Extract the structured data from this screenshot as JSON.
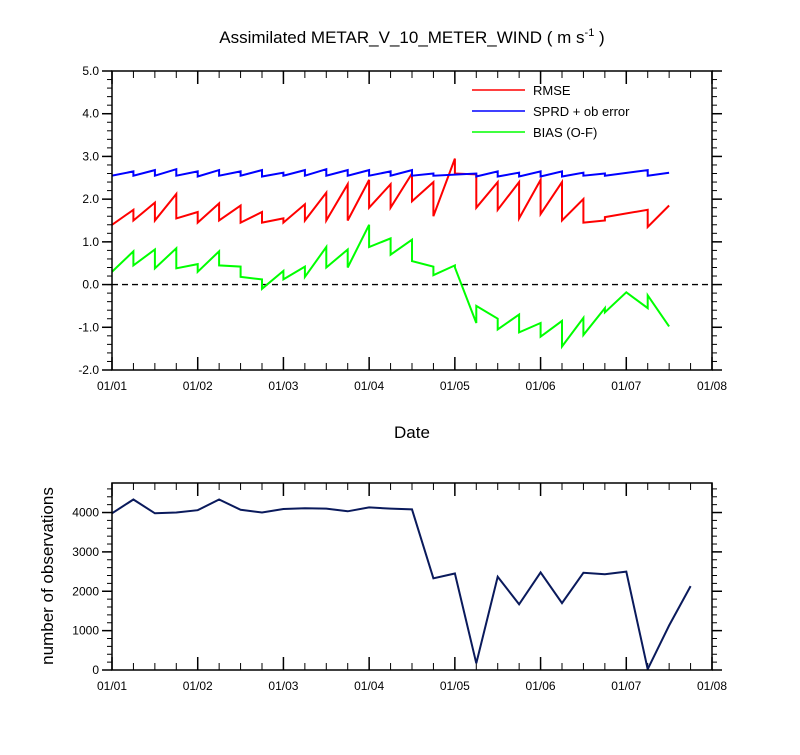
{
  "chart_data": [
    {
      "type": "line",
      "title": "Assimilated METAR_V_10_METER_WIND ( m s",
      "title_sup": "-1",
      "title_close": " )",
      "xlabel": "Date",
      "ylabel": "",
      "xlim": [
        0,
        7
      ],
      "ylim": [
        -2.0,
        5.0
      ],
      "yticks": [
        "5.0",
        "4.0",
        "3.0",
        "2.0",
        "1.0",
        "0.0",
        "-1.0",
        "-2.0"
      ],
      "ytick_values": [
        5,
        4,
        3,
        2,
        1,
        0,
        -1,
        -2
      ],
      "xticks": [
        "01/01",
        "01/02",
        "01/03",
        "01/04",
        "01/05",
        "01/06",
        "01/07",
        "01/08"
      ],
      "xtick_values": [
        0,
        1,
        2,
        3,
        4,
        5,
        6,
        7
      ],
      "x_minor_step": 0.25,
      "y_minor_step": 0.2,
      "zero_line": "dashed",
      "grid": false,
      "legend_position": "top-right",
      "series": [
        {
          "name": "RMSE",
          "color": "#ff0000",
          "points": [
            [
              0,
              1.4
            ],
            [
              0.25,
              1.75
            ],
            [
              0.25,
              1.5
            ],
            [
              0.5,
              1.92
            ],
            [
              0.5,
              1.5
            ],
            [
              0.75,
              2.12
            ],
            [
              0.75,
              1.55
            ],
            [
              1.0,
              1.7
            ],
            [
              1.0,
              1.45
            ],
            [
              1.25,
              1.9
            ],
            [
              1.25,
              1.5
            ],
            [
              1.5,
              1.85
            ],
            [
              1.5,
              1.45
            ],
            [
              1.75,
              1.7
            ],
            [
              1.75,
              1.45
            ],
            [
              2.0,
              1.55
            ],
            [
              2.0,
              1.45
            ],
            [
              2.25,
              1.88
            ],
            [
              2.25,
              1.5
            ],
            [
              2.5,
              2.15
            ],
            [
              2.5,
              1.5
            ],
            [
              2.75,
              2.35
            ],
            [
              2.75,
              1.5
            ],
            [
              3.0,
              2.45
            ],
            [
              3.0,
              1.8
            ],
            [
              3.25,
              2.35
            ],
            [
              3.25,
              1.8
            ],
            [
              3.5,
              2.6
            ],
            [
              3.5,
              1.95
            ],
            [
              3.75,
              2.4
            ],
            [
              3.75,
              1.6
            ],
            [
              4.0,
              2.95
            ],
            [
              4.0,
              2.6
            ],
            [
              4.25,
              2.58
            ],
            [
              4.25,
              1.8
            ],
            [
              4.5,
              2.4
            ],
            [
              4.5,
              1.75
            ],
            [
              4.75,
              2.4
            ],
            [
              4.75,
              1.55
            ],
            [
              5.0,
              2.45
            ],
            [
              5.0,
              1.65
            ],
            [
              5.25,
              2.4
            ],
            [
              5.25,
              1.5
            ],
            [
              5.5,
              2.0
            ],
            [
              5.5,
              1.45
            ],
            [
              5.75,
              1.5
            ],
            [
              5.75,
              1.58
            ],
            [
              6.25,
              1.75
            ],
            [
              6.25,
              1.35
            ],
            [
              6.5,
              1.85
            ]
          ]
        },
        {
          "name": "SPRD + ob error",
          "color": "#0000ff",
          "points": [
            [
              0,
              2.55
            ],
            [
              0.25,
              2.65
            ],
            [
              0.25,
              2.55
            ],
            [
              0.5,
              2.68
            ],
            [
              0.5,
              2.55
            ],
            [
              0.75,
              2.7
            ],
            [
              0.75,
              2.55
            ],
            [
              1.0,
              2.65
            ],
            [
              1.0,
              2.53
            ],
            [
              1.25,
              2.68
            ],
            [
              1.25,
              2.55
            ],
            [
              1.5,
              2.65
            ],
            [
              1.5,
              2.55
            ],
            [
              1.75,
              2.68
            ],
            [
              1.75,
              2.53
            ],
            [
              2.0,
              2.62
            ],
            [
              2.0,
              2.55
            ],
            [
              2.25,
              2.68
            ],
            [
              2.25,
              2.55
            ],
            [
              2.5,
              2.7
            ],
            [
              2.5,
              2.55
            ],
            [
              2.75,
              2.68
            ],
            [
              2.75,
              2.55
            ],
            [
              3.0,
              2.68
            ],
            [
              3.0,
              2.55
            ],
            [
              3.25,
              2.65
            ],
            [
              3.25,
              2.55
            ],
            [
              3.5,
              2.68
            ],
            [
              3.5,
              2.55
            ],
            [
              3.75,
              2.6
            ],
            [
              3.75,
              2.55
            ],
            [
              4.25,
              2.6
            ],
            [
              4.25,
              2.53
            ],
            [
              4.5,
              2.65
            ],
            [
              4.5,
              2.53
            ],
            [
              4.75,
              2.62
            ],
            [
              4.75,
              2.53
            ],
            [
              5.0,
              2.65
            ],
            [
              5.0,
              2.53
            ],
            [
              5.25,
              2.65
            ],
            [
              5.25,
              2.53
            ],
            [
              5.5,
              2.62
            ],
            [
              5.5,
              2.55
            ],
            [
              5.75,
              2.6
            ],
            [
              5.75,
              2.55
            ],
            [
              6.25,
              2.68
            ],
            [
              6.25,
              2.55
            ],
            [
              6.5,
              2.62
            ]
          ]
        },
        {
          "name": "BIAS (O-F)",
          "color": "#00ff00",
          "points": [
            [
              0,
              0.3
            ],
            [
              0.25,
              0.78
            ],
            [
              0.25,
              0.45
            ],
            [
              0.5,
              0.82
            ],
            [
              0.5,
              0.38
            ],
            [
              0.75,
              0.85
            ],
            [
              0.75,
              0.38
            ],
            [
              1.0,
              0.48
            ],
            [
              1.0,
              0.3
            ],
            [
              1.25,
              0.78
            ],
            [
              1.25,
              0.45
            ],
            [
              1.5,
              0.42
            ],
            [
              1.5,
              0.18
            ],
            [
              1.75,
              0.12
            ],
            [
              1.75,
              -0.1
            ],
            [
              2.0,
              0.32
            ],
            [
              2.0,
              0.12
            ],
            [
              2.25,
              0.42
            ],
            [
              2.25,
              0.18
            ],
            [
              2.5,
              0.88
            ],
            [
              2.5,
              0.4
            ],
            [
              2.75,
              0.82
            ],
            [
              2.75,
              0.4
            ],
            [
              3.0,
              1.4
            ],
            [
              3.0,
              0.88
            ],
            [
              3.25,
              1.08
            ],
            [
              3.25,
              0.7
            ],
            [
              3.5,
              1.05
            ],
            [
              3.5,
              0.55
            ],
            [
              3.75,
              0.42
            ],
            [
              3.75,
              0.22
            ],
            [
              4.0,
              0.45
            ],
            [
              4.0,
              0.4
            ],
            [
              4.25,
              -0.9
            ],
            [
              4.25,
              -0.5
            ],
            [
              4.5,
              -0.8
            ],
            [
              4.5,
              -1.05
            ],
            [
              4.75,
              -0.7
            ],
            [
              4.75,
              -1.12
            ],
            [
              5.0,
              -0.9
            ],
            [
              5.0,
              -1.22
            ],
            [
              5.25,
              -0.85
            ],
            [
              5.25,
              -1.45
            ],
            [
              5.5,
              -0.78
            ],
            [
              5.5,
              -1.18
            ],
            [
              5.75,
              -0.55
            ],
            [
              5.75,
              -0.65
            ],
            [
              6.0,
              -0.18
            ],
            [
              6.25,
              -0.55
            ],
            [
              6.25,
              -0.25
            ],
            [
              6.5,
              -0.98
            ]
          ]
        }
      ]
    },
    {
      "type": "line",
      "title": "",
      "xlabel": "",
      "ylabel": "number of observations",
      "xlim": [
        0,
        7
      ],
      "ylim": [
        0,
        4750
      ],
      "yticks": [
        "0",
        "1000",
        "2000",
        "3000",
        "4000"
      ],
      "ytick_values": [
        0,
        1000,
        2000,
        3000,
        4000
      ],
      "xticks": [
        "01/01",
        "01/02",
        "01/03",
        "01/04",
        "01/05",
        "01/06",
        "01/07",
        "01/08"
      ],
      "xtick_values": [
        0,
        1,
        2,
        3,
        4,
        5,
        6,
        7
      ],
      "x_minor_step": 0.25,
      "y_minor_step": 200,
      "grid": false,
      "series": [
        {
          "color": "#0a1a5c",
          "points": [
            [
              0,
              3980
            ],
            [
              0.25,
              4330
            ],
            [
              0.5,
              3980
            ],
            [
              0.75,
              4000
            ],
            [
              1.0,
              4060
            ],
            [
              1.25,
              4330
            ],
            [
              1.5,
              4070
            ],
            [
              1.75,
              4000
            ],
            [
              2.0,
              4090
            ],
            [
              2.25,
              4110
            ],
            [
              2.5,
              4100
            ],
            [
              2.75,
              4030
            ],
            [
              3.0,
              4130
            ],
            [
              3.25,
              4100
            ],
            [
              3.5,
              4080
            ],
            [
              3.75,
              2330
            ],
            [
              4.0,
              2450
            ],
            [
              4.25,
              170
            ],
            [
              4.5,
              2370
            ],
            [
              4.75,
              1670
            ],
            [
              5.0,
              2480
            ],
            [
              5.25,
              1700
            ],
            [
              5.5,
              2470
            ],
            [
              5.75,
              2430
            ],
            [
              6.0,
              2500
            ],
            [
              6.25,
              20
            ],
            [
              6.5,
              1130
            ],
            [
              6.75,
              2130
            ]
          ]
        }
      ]
    }
  ]
}
